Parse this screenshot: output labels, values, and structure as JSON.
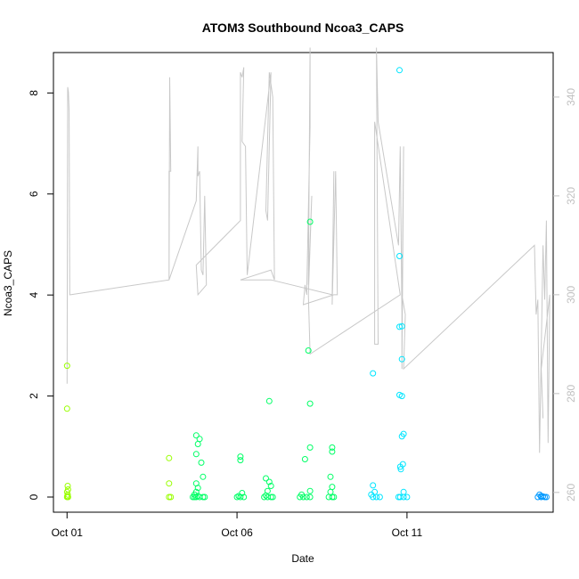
{
  "chart_data": {
    "type": "scatter",
    "title": "ATOM3 Southbound Ncoa3_CAPS",
    "xlabel": "Date",
    "ylabel": "Ncoa3_CAPS",
    "x_ticks": [
      "Oct 01",
      "Oct 06",
      "Oct 11"
    ],
    "x_tick_days": [
      1,
      6,
      11
    ],
    "xlim": [
      0.6,
      15.3
    ],
    "ylim": [
      -0.3,
      8.8
    ],
    "y_ticks": [
      0,
      2,
      4,
      6,
      8
    ],
    "y2lim": [
      256,
      349
    ],
    "y2_ticks": [
      260,
      280,
      300,
      320,
      340
    ],
    "grid": false,
    "legend": "none",
    "colors": {
      "line": "#c8c8c8",
      "right_axis": "#c0c0c0",
      "points_early": "#99ff00",
      "points_mid": "#00ff66",
      "points_late": "#00e5ff",
      "points_end": "#0099ff"
    },
    "series": [
      {
        "kind": "points",
        "points": [
          [
            1.0,
            2.6
          ],
          [
            1.0,
            1.75
          ],
          [
            1.02,
            0.22
          ],
          [
            1.03,
            0.15
          ],
          [
            1.0,
            0.1
          ],
          [
            1.02,
            0.05
          ],
          [
            1.0,
            0.0
          ],
          [
            1.03,
            0.0
          ],
          [
            1.01,
            0.02
          ],
          [
            4.0,
            0.77
          ],
          [
            4.0,
            0.27
          ],
          [
            4.0,
            0.0
          ],
          [
            4.05,
            0.0
          ],
          [
            4.8,
            1.22
          ],
          [
            4.85,
            1.05
          ],
          [
            4.9,
            1.15
          ],
          [
            4.8,
            0.85
          ],
          [
            4.95,
            0.68
          ],
          [
            5.0,
            0.4
          ],
          [
            4.8,
            0.27
          ],
          [
            4.85,
            0.18
          ],
          [
            4.8,
            0.1
          ],
          [
            4.75,
            0.05
          ],
          [
            4.7,
            0.0
          ],
          [
            4.8,
            0.0
          ],
          [
            4.9,
            0.0
          ],
          [
            5.0,
            0.0
          ],
          [
            5.05,
            0.0
          ],
          [
            4.75,
            0.0
          ],
          [
            4.85,
            0.02
          ],
          [
            6.1,
            0.8
          ],
          [
            6.1,
            0.73
          ],
          [
            6.15,
            0.08
          ],
          [
            6.1,
            0.0
          ],
          [
            6.0,
            0.0
          ],
          [
            6.2,
            0.0
          ],
          [
            6.05,
            0.02
          ],
          [
            6.95,
            1.9
          ],
          [
            6.85,
            0.37
          ],
          [
            6.95,
            0.3
          ],
          [
            7.0,
            0.22
          ],
          [
            6.9,
            0.12
          ],
          [
            6.8,
            0.0
          ],
          [
            6.9,
            0.0
          ],
          [
            7.0,
            0.0
          ],
          [
            7.05,
            0.0
          ],
          [
            6.85,
            0.03
          ],
          [
            8.0,
            0.75
          ],
          [
            8.15,
            0.12
          ],
          [
            7.9,
            0.05
          ],
          [
            7.85,
            0.0
          ],
          [
            7.95,
            0.0
          ],
          [
            8.05,
            0.0
          ],
          [
            8.15,
            0.0
          ],
          [
            8.15,
            5.45
          ],
          [
            8.1,
            2.9
          ],
          [
            8.15,
            1.85
          ],
          [
            8.15,
            0.98
          ],
          [
            8.8,
            0.98
          ],
          [
            8.8,
            0.9
          ],
          [
            8.75,
            0.4
          ],
          [
            8.8,
            0.2
          ],
          [
            8.75,
            0.1
          ],
          [
            8.7,
            0.0
          ],
          [
            8.8,
            0.0
          ],
          [
            8.85,
            0.0
          ],
          [
            10.0,
            2.45
          ],
          [
            10.0,
            0.23
          ],
          [
            10.05,
            0.1
          ],
          [
            9.95,
            0.05
          ],
          [
            10.0,
            0.0
          ],
          [
            10.1,
            0.0
          ],
          [
            10.2,
            0.0
          ],
          [
            10.78,
            8.45
          ],
          [
            10.78,
            4.77
          ],
          [
            10.78,
            3.37
          ],
          [
            10.78,
            2.02
          ],
          [
            10.8,
            0.6
          ],
          [
            10.82,
            0.55
          ],
          [
            10.85,
            3.38
          ],
          [
            10.85,
            2.73
          ],
          [
            10.85,
            2.0
          ],
          [
            10.85,
            1.2
          ],
          [
            10.88,
            0.65
          ],
          [
            10.9,
            1.25
          ],
          [
            10.9,
            0.1
          ],
          [
            10.75,
            0.0
          ],
          [
            10.8,
            0.0
          ],
          [
            10.9,
            0.0
          ],
          [
            11.0,
            0.0
          ],
          [
            14.9,
            0.05
          ],
          [
            14.95,
            0.02
          ],
          [
            14.85,
            0.0
          ],
          [
            14.95,
            0.0
          ],
          [
            15.05,
            0.0
          ],
          [
            15.1,
            0.0
          ],
          [
            15.0,
            0.01
          ]
        ]
      },
      {
        "kind": "line",
        "axis": "right",
        "x": [
          1.0,
          1.02,
          1.04,
          1.06,
          1.08,
          1.1,
          1.1,
          4.0,
          4.02,
          4.05,
          4.0,
          4.0,
          4.8,
          4.85,
          4.85,
          4.9,
          4.95,
          5.0,
          5.05,
          5.1,
          4.85,
          4.8,
          6.1,
          6.1,
          6.15,
          6.2,
          6.15,
          6.25,
          6.3,
          6.3,
          7.0,
          6.9,
          6.85,
          6.95,
          7.05,
          7.1,
          7.0,
          6.1,
          6.2,
          7.0,
          8.8,
          8.85,
          8.8,
          8.9,
          8.95,
          8.85,
          7.95,
          8.0,
          8.05,
          8.15,
          8.15,
          8.1,
          8.2,
          8.1,
          8.15,
          10.8,
          10.05,
          10.05,
          10.15,
          10.1,
          10.15,
          10.75,
          10.8,
          10.85,
          10.9,
          10.85,
          10.85,
          10.95,
          10.9,
          14.75,
          14.8,
          14.85,
          14.9,
          15.0,
          15.05,
          15.1,
          15.15,
          15.2,
          14.95,
          15.0
        ],
        "y": [
          282,
          342,
          341,
          337,
          300,
          300,
          300,
          303,
          344,
          325,
          325,
          303,
          319,
          330,
          324,
          325,
          305,
          304,
          320,
          302,
          300,
          306,
          315,
          345,
          344,
          346,
          331,
          330,
          304,
          304,
          345,
          315,
          317,
          345,
          340,
          303,
          305,
          303,
          303,
          303,
          300,
          325,
          298,
          325,
          300,
          300,
          298,
          302,
          300,
          334,
          350,
          302,
          320,
          300,
          288,
          300,
          335,
          290,
          290,
          350,
          335,
          310,
          330,
          296,
          330,
          285,
          300,
          296,
          285,
          310,
          296,
          299,
          268,
          310,
          299,
          315,
          270,
          300,
          285,
          275
        ]
      }
    ]
  }
}
